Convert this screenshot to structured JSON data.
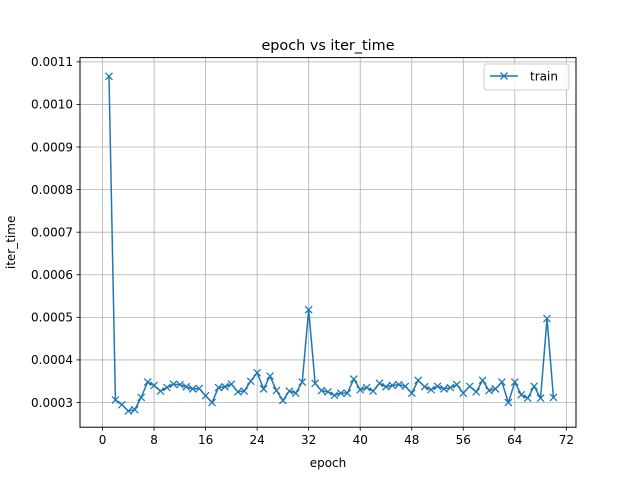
{
  "chart_data": {
    "type": "line",
    "title": "epoch vs iter_time",
    "xlabel": "epoch",
    "ylabel": "iter_time",
    "xlim": [
      -3.5,
      73.5
    ],
    "ylim": [
      0.000242,
      0.00111
    ],
    "xticks": [
      0,
      8,
      16,
      24,
      32,
      40,
      48,
      56,
      64,
      72
    ],
    "yticks": [
      0.0003,
      0.0004,
      0.0005,
      0.0006,
      0.0007,
      0.0008,
      0.0009,
      0.001,
      0.0011
    ],
    "ytick_labels": [
      "0.0003",
      "0.0004",
      "0.0005",
      "0.0006",
      "0.0007",
      "0.0008",
      "0.0009",
      "0.0010",
      "0.0011"
    ],
    "grid": true,
    "legend_position": "top-right",
    "series": [
      {
        "name": "train",
        "color": "#1f77b4",
        "marker": "x",
        "x": [
          1,
          2,
          3,
          4,
          5,
          6,
          7,
          8,
          9,
          10,
          11,
          12,
          13,
          14,
          15,
          16,
          17,
          18,
          19,
          20,
          21,
          22,
          23,
          24,
          25,
          26,
          27,
          28,
          29,
          30,
          31,
          32,
          33,
          34,
          35,
          36,
          37,
          38,
          39,
          40,
          41,
          42,
          43,
          44,
          45,
          46,
          47,
          48,
          49,
          50,
          51,
          52,
          53,
          54,
          55,
          56,
          57,
          58,
          59,
          60,
          61,
          62,
          63,
          64,
          65,
          66,
          67,
          68,
          69,
          70
        ],
        "values": [
          0.001066,
          0.000306,
          0.000295,
          0.00028,
          0.000283,
          0.000312,
          0.000348,
          0.00034,
          0.000327,
          0.000335,
          0.000343,
          0.000342,
          0.000337,
          0.000332,
          0.000333,
          0.000316,
          0.0003,
          0.000335,
          0.000337,
          0.000343,
          0.000325,
          0.000327,
          0.00035,
          0.00037,
          0.000332,
          0.000362,
          0.000328,
          0.000305,
          0.000327,
          0.000322,
          0.000348,
          0.000518,
          0.000345,
          0.000328,
          0.000325,
          0.000317,
          0.000322,
          0.000322,
          0.000355,
          0.00033,
          0.000335,
          0.000327,
          0.000345,
          0.000337,
          0.00034,
          0.000342,
          0.000338,
          0.000322,
          0.000352,
          0.000337,
          0.00033,
          0.000338,
          0.000332,
          0.000335,
          0.000342,
          0.000322,
          0.000338,
          0.000325,
          0.000352,
          0.000328,
          0.000332,
          0.000348,
          0.0003,
          0.000348,
          0.000318,
          0.00031,
          0.000338,
          0.00031,
          0.000497,
          0.000312
        ]
      }
    ]
  }
}
